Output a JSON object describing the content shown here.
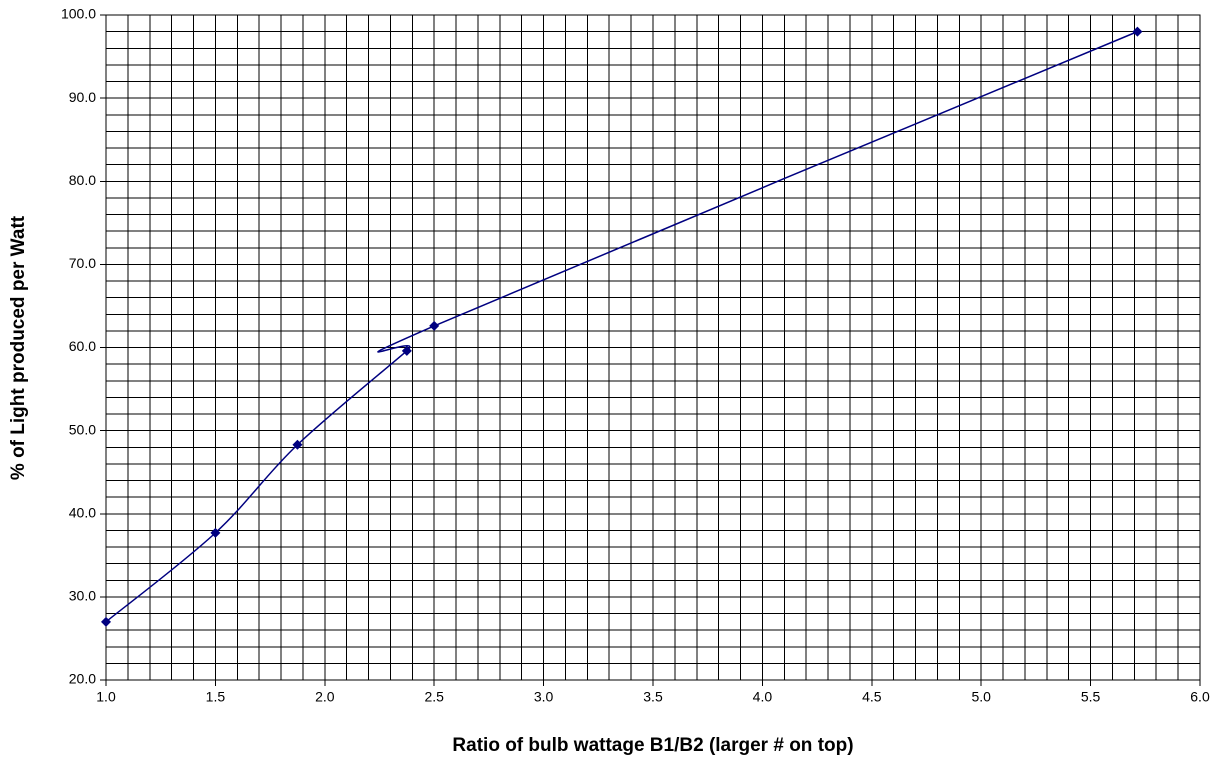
{
  "chart_data": {
    "type": "line",
    "smooth": true,
    "marker": "diamond",
    "xlabel": "Ratio of bulb wattage B1/B2 (larger # on top)",
    "ylabel": "% of Light produced per Watt",
    "x": [
      1.0,
      1.5,
      1.875,
      2.375,
      2.5,
      5.714
    ],
    "values": [
      27.0,
      37.7,
      48.3,
      59.6,
      62.6,
      98.0
    ],
    "color": "#000080",
    "xlim": [
      1,
      6
    ],
    "xticks": [
      {
        "value": 1,
        "label": "1.0"
      },
      {
        "value": 1.5,
        "label": "1.5"
      },
      {
        "value": 2,
        "label": "2.0"
      },
      {
        "value": 2.5,
        "label": "2.5"
      },
      {
        "value": 3,
        "label": "3.0"
      },
      {
        "value": 3.5,
        "label": "3.5"
      },
      {
        "value": 4,
        "label": "4.0"
      },
      {
        "value": 4.5,
        "label": "4.5"
      },
      {
        "value": 5,
        "label": "5.0"
      },
      {
        "value": 5.5,
        "label": "5.5"
      },
      {
        "value": 6,
        "label": "6.0"
      }
    ],
    "ylim": [
      20,
      100
    ],
    "yticks": [
      {
        "value": 20,
        "label": "20.0"
      },
      {
        "value": 30,
        "label": "30.0"
      },
      {
        "value": 40,
        "label": "40.0"
      },
      {
        "value": 50,
        "label": "50.0"
      },
      {
        "value": 60,
        "label": "60.0"
      },
      {
        "value": 70,
        "label": "70.0"
      },
      {
        "value": 80,
        "label": "80.0"
      },
      {
        "value": 90,
        "label": "90.0"
      },
      {
        "value": 100,
        "label": "100.0"
      }
    ],
    "xminorticks": [
      1.1,
      1.2,
      1.3,
      1.4,
      1.6,
      1.7,
      1.8,
      1.9,
      2.1,
      2.2,
      2.3,
      2.4,
      2.6,
      2.7,
      2.8,
      2.9,
      3.1,
      3.2,
      3.3,
      3.4,
      3.6,
      3.7,
      3.8,
      3.9,
      4.1,
      4.2,
      4.3,
      4.4,
      4.6,
      4.7,
      4.8,
      4.9,
      5.1,
      5.2,
      5.3,
      5.4,
      5.6,
      5.7,
      5.8,
      5.9
    ],
    "yminorticks": [
      22,
      24,
      26,
      28,
      32,
      34,
      36,
      38,
      42,
      44,
      46,
      48,
      52,
      54,
      56,
      58,
      62,
      64,
      66,
      68,
      72,
      74,
      76,
      78,
      82,
      84,
      86,
      88,
      92,
      94,
      96,
      98
    ],
    "grid": true
  }
}
